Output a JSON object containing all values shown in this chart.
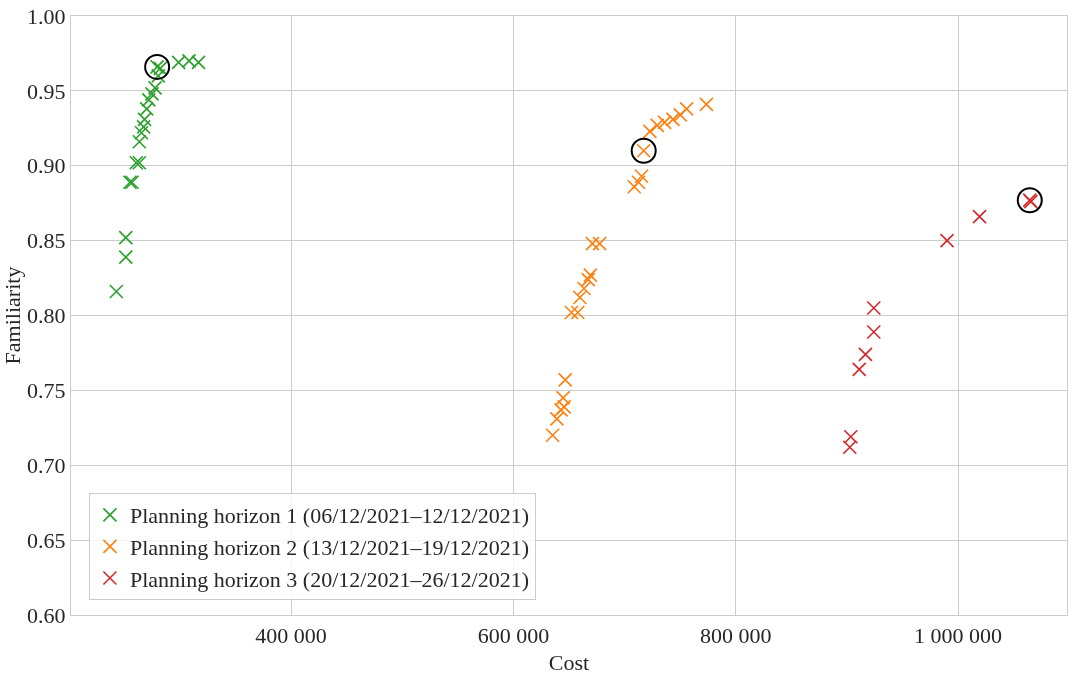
{
  "chart_data": {
    "type": "scatter",
    "xlabel": "Cost",
    "ylabel": "Familiarity",
    "xlim": [
      202000,
      1098000
    ],
    "ylim": [
      0.6,
      1.0
    ],
    "xticks": [
      {
        "value": 400000,
        "label": "400 000"
      },
      {
        "value": 600000,
        "label": "600 000"
      },
      {
        "value": 800000,
        "label": "800 000"
      },
      {
        "value": 1000000,
        "label": "1 000 000"
      }
    ],
    "yticks": [
      {
        "value": 0.6,
        "label": "0.60"
      },
      {
        "value": 0.65,
        "label": "0.65"
      },
      {
        "value": 0.7,
        "label": "0.70"
      },
      {
        "value": 0.75,
        "label": "0.75"
      },
      {
        "value": 0.8,
        "label": "0.80"
      },
      {
        "value": 0.85,
        "label": "0.85"
      },
      {
        "value": 0.9,
        "label": "0.90"
      },
      {
        "value": 0.95,
        "label": "0.95"
      },
      {
        "value": 1.0,
        "label": "1.00"
      }
    ],
    "grid": true,
    "legend": "bottom left",
    "series": [
      {
        "name": "Planning horizon 1 (06/12/2021–12/12/2021)",
        "color": "#2ca02c",
        "marker": "cross",
        "x": [
          242800,
          251300,
          251300,
          255000,
          256900,
          260700,
          263500,
          263500,
          265400,
          267300,
          268200,
          270100,
          272000,
          274800,
          277600,
          280500,
          279500,
          282300,
          298800,
          308200,
          316700
        ],
        "values": [
          0.816,
          0.839,
          0.852,
          0.889,
          0.889,
          0.902,
          0.902,
          0.916,
          0.922,
          0.926,
          0.931,
          0.938,
          0.944,
          0.948,
          0.952,
          0.96,
          0.966,
          0.965,
          0.969,
          0.97,
          0.969
        ]
      },
      {
        "name": "Planning horizon 2 (13/12/2021–19/12/2021)",
        "color": "#ff7f0e",
        "marker": "cross",
        "x": [
          635300,
          639100,
          642800,
          645600,
          644700,
          646600,
          652200,
          657900,
          659800,
          663500,
          667300,
          669200,
          671100,
          677600,
          708700,
          712500,
          715300,
          717200,
          722800,
          729400,
          736000,
          743500,
          750100,
          755800,
          773600
        ],
        "values": [
          0.72,
          0.731,
          0.737,
          0.739,
          0.745,
          0.757,
          0.802,
          0.802,
          0.812,
          0.818,
          0.824,
          0.827,
          0.848,
          0.848,
          0.886,
          0.889,
          0.893,
          0.91,
          0.923,
          0.927,
          0.929,
          0.931,
          0.934,
          0.938,
          0.941
        ]
      },
      {
        "name": "Planning horizon 3 (20/12/2021–26/12/2021)",
        "color": "#d62728",
        "marker": "cross",
        "x": [
          903500,
          902600,
          911100,
          916700,
          924200,
          924200,
          990100,
          1019300,
          1064500,
          1065500
        ],
        "values": [
          0.719,
          0.712,
          0.764,
          0.774,
          0.789,
          0.805,
          0.85,
          0.866,
          0.877,
          0.876
        ]
      },
      {
        "color": "#000000",
        "marker": "circle",
        "x": [
          279500,
          717200,
          1064500
        ],
        "values": [
          0.966,
          0.91,
          0.877
        ]
      }
    ]
  }
}
